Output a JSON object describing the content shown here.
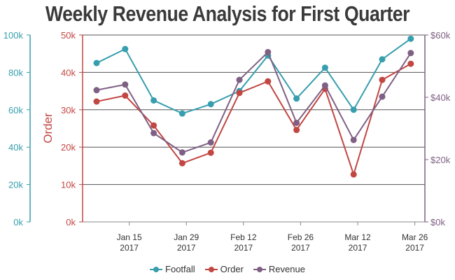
{
  "chart_data": {
    "type": "line",
    "title": "Weekly Revenue Analysis for First Quarter",
    "x": [
      "2017-01-07",
      "2017-01-14",
      "2017-01-21",
      "2017-01-28",
      "2017-02-04",
      "2017-02-11",
      "2017-02-18",
      "2017-02-25",
      "2017-03-04",
      "2017-03-11",
      "2017-03-18",
      "2017-03-25"
    ],
    "x_ticks": [
      {
        "date": "2017-01-15",
        "line1": "Jan 15",
        "line2": "2017"
      },
      {
        "date": "2017-01-29",
        "line1": "Jan 29",
        "line2": "2017"
      },
      {
        "date": "2017-02-12",
        "line1": "Feb 12",
        "line2": "2017"
      },
      {
        "date": "2017-02-26",
        "line1": "Feb 26",
        "line2": "2017"
      },
      {
        "date": "2017-03-12",
        "line1": "Mar 12",
        "line2": "2017"
      },
      {
        "date": "2017-03-26",
        "line1": "Mar 26",
        "line2": "2017"
      }
    ],
    "axes": {
      "footfall": {
        "ylim": [
          0,
          100000
        ],
        "ticks": [
          "0k",
          "20k",
          "40k",
          "60k",
          "80k",
          "100k"
        ],
        "color": "#369EAD",
        "position": "left-outer"
      },
      "order": {
        "ylim": [
          0,
          50000
        ],
        "ticks": [
          "0k",
          "10k",
          "20k",
          "30k",
          "40k",
          "50k"
        ],
        "label": "Order",
        "color": "#C24642",
        "position": "left-inner"
      },
      "revenue": {
        "ylim": [
          0,
          60000
        ],
        "ticks": [
          "$0k",
          "$20k",
          "$40k",
          "$60k"
        ],
        "color": "#7F6084",
        "position": "right"
      }
    },
    "grid": true,
    "legend_position": "bottom",
    "series": [
      {
        "name": "Footfall",
        "axis": "footfall",
        "color": "#369EAD",
        "values": [
          85000,
          92500,
          65000,
          58000,
          63000,
          70000,
          89000,
          66000,
          82500,
          60000,
          87000,
          98000
        ]
      },
      {
        "name": "Order",
        "axis": "order",
        "color": "#C24642",
        "values": [
          32200,
          33800,
          25800,
          15700,
          18500,
          34500,
          37600,
          24600,
          35600,
          12700,
          38000,
          42300
        ]
      },
      {
        "name": "Revenue",
        "axis": "revenue",
        "color": "#7F6084",
        "values": [
          42300,
          44100,
          28500,
          22300,
          25500,
          45600,
          54500,
          31800,
          43800,
          26300,
          40200,
          54200
        ]
      }
    ]
  }
}
